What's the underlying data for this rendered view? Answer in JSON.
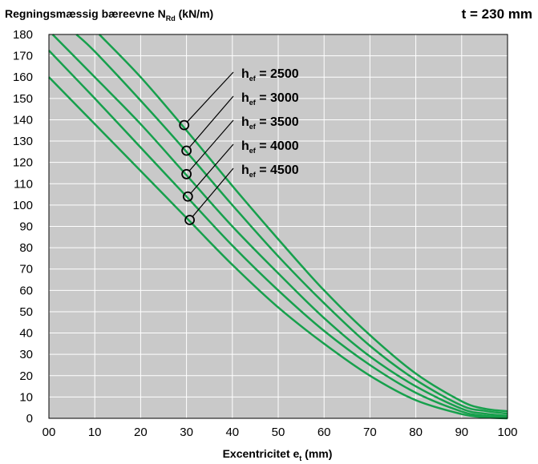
{
  "chart_data": {
    "type": "line",
    "title": "Regningsmæssig bæreevne N",
    "title_sub": "Rd",
    "title_unit": " (kN/m)",
    "title_right": "t  = 230 mm",
    "xlabel": "Excentricitet e",
    "xlabel_sub": "t",
    "xlabel_unit": " (mm)",
    "xlim": [
      0,
      100
    ],
    "ylim": [
      0,
      180
    ],
    "x_ticks": [
      0,
      10,
      20,
      30,
      40,
      50,
      60,
      70,
      80,
      90,
      100
    ],
    "x_tick_labels": [
      "00",
      "10",
      "20",
      "30",
      "40",
      "50",
      "60",
      "70",
      "80",
      "90",
      "100"
    ],
    "y_ticks": [
      0,
      10,
      20,
      30,
      40,
      50,
      60,
      70,
      80,
      90,
      100,
      110,
      120,
      130,
      140,
      150,
      160,
      170,
      180
    ],
    "grid": true,
    "line_color": "#16a04c",
    "background_color": "#c9c9c9",
    "series": [
      {
        "name": "h_ef = 2500",
        "label_main": "h",
        "label_sub": "ef",
        "label_value": " = 2500",
        "marker": [
          29.5,
          137.5
        ],
        "points": [
          [
            11,
            180
          ],
          [
            20,
            160
          ],
          [
            30,
            135
          ],
          [
            40,
            109
          ],
          [
            50,
            84
          ],
          [
            60,
            60
          ],
          [
            70,
            39
          ],
          [
            80,
            21
          ],
          [
            90,
            8
          ],
          [
            95,
            4.5
          ],
          [
            100,
            3.3
          ]
        ]
      },
      {
        "name": "h_ef = 3000",
        "label_main": "h",
        "label_sub": "ef",
        "label_value": " = 3000",
        "marker": [
          30,
          125.5
        ],
        "points": [
          [
            6,
            180
          ],
          [
            10,
            172
          ],
          [
            20,
            149
          ],
          [
            30,
            125
          ],
          [
            40,
            100
          ],
          [
            50,
            76
          ],
          [
            60,
            54
          ],
          [
            70,
            34
          ],
          [
            80,
            18
          ],
          [
            90,
            6
          ],
          [
            95,
            3.5
          ],
          [
            100,
            2.2
          ]
        ]
      },
      {
        "name": "h_ef = 3500",
        "label_main": "h",
        "label_sub": "ef",
        "label_value": " = 3500",
        "marker": [
          30,
          114.5
        ],
        "points": [
          [
            0.8,
            180
          ],
          [
            10,
            160
          ],
          [
            20,
            138
          ],
          [
            30,
            114
          ],
          [
            40,
            90
          ],
          [
            50,
            68
          ],
          [
            60,
            47
          ],
          [
            70,
            29
          ],
          [
            80,
            15
          ],
          [
            90,
            4.5
          ],
          [
            95,
            2.2
          ],
          [
            100,
            1.2
          ]
        ]
      },
      {
        "name": "h_ef = 4000",
        "label_main": "h",
        "label_sub": "ef",
        "label_value": " = 4000",
        "marker": [
          30.3,
          104
        ],
        "points": [
          [
            0,
            172.5
          ],
          [
            10,
            150
          ],
          [
            20,
            127
          ],
          [
            30,
            104
          ],
          [
            40,
            81
          ],
          [
            50,
            60
          ],
          [
            60,
            41
          ],
          [
            70,
            25
          ],
          [
            80,
            12
          ],
          [
            90,
            3.2
          ],
          [
            95,
            1.2
          ],
          [
            100,
            0.5
          ]
        ]
      },
      {
        "name": "h_ef = 4500",
        "label_main": "h",
        "label_sub": "ef",
        "label_value": " = 4500",
        "marker": [
          30.7,
          93
        ],
        "points": [
          [
            0,
            160
          ],
          [
            10,
            138
          ],
          [
            20,
            116
          ],
          [
            30,
            94
          ],
          [
            40,
            72
          ],
          [
            50,
            52
          ],
          [
            60,
            35
          ],
          [
            70,
            20
          ],
          [
            80,
            8.5
          ],
          [
            90,
            2
          ],
          [
            95,
            0.5
          ],
          [
            100,
            0
          ]
        ]
      }
    ]
  }
}
